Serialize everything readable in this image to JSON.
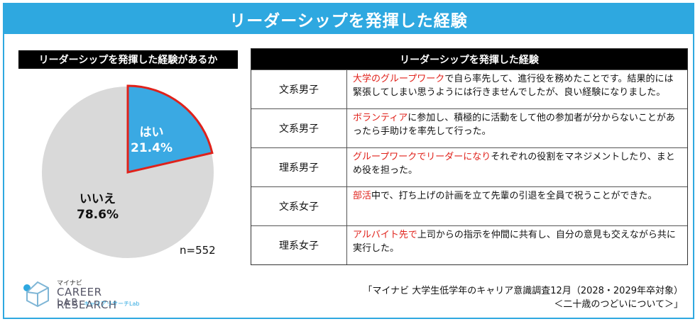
{
  "header": {
    "title": "リーダーシップを発揮した経験"
  },
  "left": {
    "title": "リーダーシップを発揮した経験があるか",
    "n_label": "n=552"
  },
  "chart_data": {
    "type": "pie",
    "title": "リーダーシップを発揮した経験があるか",
    "slices": [
      {
        "label": "はい",
        "value": 21.4,
        "display": "21.4%",
        "color": "#3aa9e3",
        "highlight": "#e0221b"
      },
      {
        "label": "いいえ",
        "value": 78.6,
        "display": "78.6%",
        "color": "#d9d9d9"
      }
    ],
    "n": "n=552"
  },
  "table": {
    "title": "リーダーシップを発揮した経験",
    "rows": [
      {
        "category": "文系男子",
        "highlight": "大学のグループワーク",
        "rest": "で自ら率先して、進行役を務めたことです。結果的には緊張してしまい思うようには行きませんでしたが、良い経験になりました。"
      },
      {
        "category": "文系男子",
        "highlight": "ボランティア",
        "rest": "に参加し、積極的に活動をして他の参加者が分からないことがあったら手助けを率先して行った。"
      },
      {
        "category": "理系男子",
        "highlight": "グループワークでリーダーになり",
        "rest": "それぞれの役割をマネジメントしたり、まとめ役を担った。"
      },
      {
        "category": "文系女子",
        "highlight": "部活",
        "rest": "中で、打ち上げの計画を立て先輩の引退を全員で祝うことができた。"
      },
      {
        "category": "理系女子",
        "highlight": "アルバイト先で",
        "rest": "上司からの指示を仲間に共有し、自分の意見も交えながら共に実行した。"
      }
    ]
  },
  "logo": {
    "line1": "マイナビ",
    "line2": "CAREER RESEARCH",
    "line3": "LAB",
    "line4": "キャリアリサーチLab"
  },
  "source": {
    "line1": "「マイナビ 大学生低学年のキャリア意識調査12月（2028・2029年卒対象）",
    "line2": "＜二十歳のつどいについて＞」"
  }
}
